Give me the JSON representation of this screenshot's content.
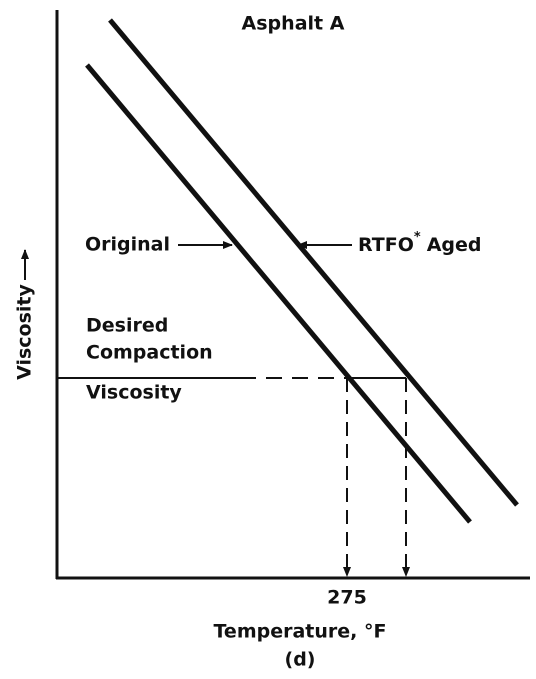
{
  "title": "Asphalt A",
  "curves": {
    "original": "Original",
    "aged": "RTFO",
    "aged_mark": "*",
    "aged_suffix": "Aged"
  },
  "desired_line": {
    "lines": [
      "Desired",
      "Compaction",
      "Viscosity"
    ]
  },
  "y_axis": {
    "label": "Viscosity"
  },
  "x_axis": {
    "tick": "275",
    "label": "Temperature, °F",
    "caption": "(d)"
  }
}
